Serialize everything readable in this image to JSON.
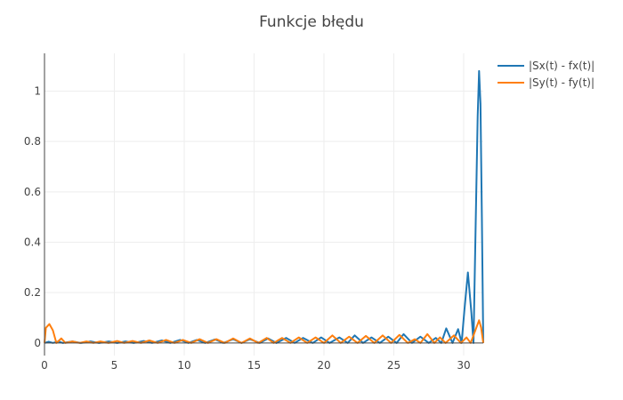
{
  "chart_data": {
    "type": "line",
    "title": "Funkcje błędu",
    "xlabel": "",
    "ylabel": "",
    "xlim": [
      0,
      31.4
    ],
    "ylim": [
      -0.05,
      1.15
    ],
    "x_ticks": [
      0,
      5,
      10,
      15,
      20,
      25,
      30
    ],
    "y_ticks": [
      0,
      0.2,
      0.4,
      0.6,
      0.8,
      1
    ],
    "grid": true,
    "legend": "top-right",
    "series": [
      {
        "name": "|Sx(t) - fx(t)|",
        "color": "#1f77b4",
        "points": [
          [
            0,
            0
          ],
          [
            0.3,
            0.005
          ],
          [
            0.6,
            0
          ],
          [
            1.0,
            0.006
          ],
          [
            1.3,
            0
          ],
          [
            2.0,
            0.006
          ],
          [
            2.6,
            0
          ],
          [
            3.3,
            0.006
          ],
          [
            3.9,
            0
          ],
          [
            4.6,
            0.006
          ],
          [
            5.2,
            0
          ],
          [
            5.8,
            0.006
          ],
          [
            6.4,
            0
          ],
          [
            7.1,
            0.008
          ],
          [
            7.7,
            0
          ],
          [
            8.4,
            0.01
          ],
          [
            9.0,
            0
          ],
          [
            9.7,
            0.012
          ],
          [
            10.3,
            0
          ],
          [
            10.9,
            0.012
          ],
          [
            11.5,
            0
          ],
          [
            12.2,
            0.014
          ],
          [
            12.8,
            0
          ],
          [
            13.5,
            0.015
          ],
          [
            14.1,
            0
          ],
          [
            14.7,
            0.015
          ],
          [
            15.4,
            0
          ],
          [
            16.0,
            0.018
          ],
          [
            16.6,
            0
          ],
          [
            17.3,
            0.02
          ],
          [
            17.9,
            0
          ],
          [
            18.5,
            0.02
          ],
          [
            19.2,
            0
          ],
          [
            19.8,
            0.022
          ],
          [
            20.4,
            0
          ],
          [
            21.1,
            0.022
          ],
          [
            21.7,
            0
          ],
          [
            22.2,
            0.03
          ],
          [
            22.8,
            0
          ],
          [
            23.4,
            0.022
          ],
          [
            24.0,
            0
          ],
          [
            24.6,
            0.025
          ],
          [
            25.2,
            0
          ],
          [
            25.7,
            0.035
          ],
          [
            26.3,
            0
          ],
          [
            26.9,
            0.025
          ],
          [
            27.5,
            0
          ],
          [
            28.0,
            0.02
          ],
          [
            28.4,
            0
          ],
          [
            28.75,
            0.058
          ],
          [
            29.2,
            0
          ],
          [
            29.6,
            0.055
          ],
          [
            29.85,
            0
          ],
          [
            30.05,
            0.13
          ],
          [
            30.3,
            0.28
          ],
          [
            30.55,
            0.12
          ],
          [
            30.7,
            0
          ],
          [
            30.85,
            0.45
          ],
          [
            31.0,
            0.9
          ],
          [
            31.1,
            1.08
          ],
          [
            31.2,
            0.95
          ],
          [
            31.3,
            0.5
          ],
          [
            31.4,
            0
          ]
        ]
      },
      {
        "name": "|Sy(t) - fy(t)|",
        "color": "#ff7f0e",
        "points": [
          [
            0,
            0
          ],
          [
            0.1,
            0.06
          ],
          [
            0.35,
            0.075
          ],
          [
            0.6,
            0.05
          ],
          [
            0.85,
            0
          ],
          [
            1.2,
            0.018
          ],
          [
            1.5,
            0
          ],
          [
            2.0,
            0.006
          ],
          [
            2.5,
            0
          ],
          [
            3.0,
            0.006
          ],
          [
            3.5,
            0
          ],
          [
            4.0,
            0.006
          ],
          [
            4.6,
            0
          ],
          [
            5.2,
            0.008
          ],
          [
            5.7,
            0
          ],
          [
            6.3,
            0.008
          ],
          [
            6.9,
            0
          ],
          [
            7.5,
            0.01
          ],
          [
            8.1,
            0
          ],
          [
            8.7,
            0.012
          ],
          [
            9.3,
            0
          ],
          [
            9.9,
            0.012
          ],
          [
            10.5,
            0
          ],
          [
            11.1,
            0.015
          ],
          [
            11.7,
            0
          ],
          [
            12.3,
            0.015
          ],
          [
            12.9,
            0
          ],
          [
            13.5,
            0.018
          ],
          [
            14.1,
            0
          ],
          [
            14.7,
            0.018
          ],
          [
            15.3,
            0
          ],
          [
            15.9,
            0.02
          ],
          [
            16.4,
            0
          ],
          [
            17.0,
            0.02
          ],
          [
            17.6,
            0
          ],
          [
            18.2,
            0.022
          ],
          [
            18.8,
            0
          ],
          [
            19.4,
            0.022
          ],
          [
            20.0,
            0
          ],
          [
            20.6,
            0.03
          ],
          [
            21.2,
            0
          ],
          [
            21.8,
            0.025
          ],
          [
            22.4,
            0
          ],
          [
            23.0,
            0.028
          ],
          [
            23.6,
            0
          ],
          [
            24.2,
            0.03
          ],
          [
            24.8,
            0
          ],
          [
            25.4,
            0.032
          ],
          [
            26.0,
            0
          ],
          [
            26.5,
            0.015
          ],
          [
            26.9,
            0
          ],
          [
            27.4,
            0.035
          ],
          [
            27.9,
            0
          ],
          [
            28.3,
            0.022
          ],
          [
            28.7,
            0
          ],
          [
            29.3,
            0.03
          ],
          [
            29.8,
            0
          ],
          [
            30.2,
            0.022
          ],
          [
            30.5,
            0
          ],
          [
            30.9,
            0.06
          ],
          [
            31.1,
            0.09
          ],
          [
            31.25,
            0.06
          ],
          [
            31.4,
            0
          ]
        ]
      }
    ]
  }
}
